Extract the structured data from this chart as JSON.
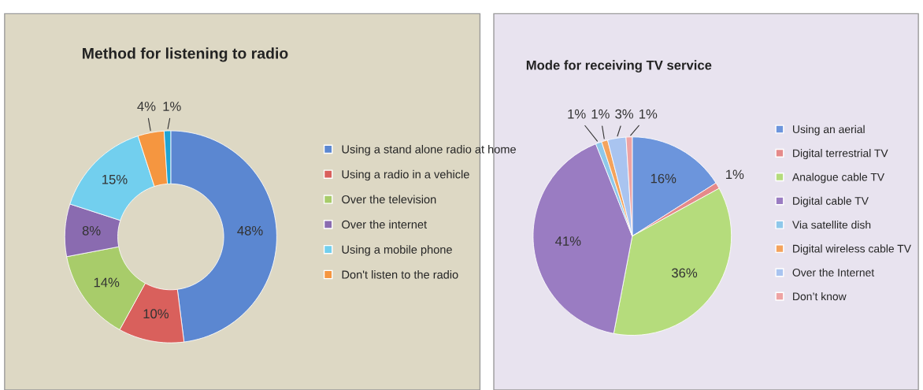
{
  "chart_data": [
    {
      "type": "donut",
      "title": "Method for listening to radio",
      "categories": [
        "Using a stand alone radio at home",
        "Using a radio in a vehicle",
        "Over the television",
        "Over the internet",
        "Using a mobile phone",
        "Don't listen to the radio",
        null
      ],
      "values": [
        48,
        10,
        14,
        8,
        15,
        4,
        1
      ],
      "value_labels": [
        "48%",
        "10%",
        "14%",
        "8%",
        "15%",
        "4%",
        "1%"
      ],
      "colors": [
        "#5b87d1",
        "#d9605c",
        "#a8cc6a",
        "#8a6bb0",
        "#72cfee",
        "#f59640",
        "#1fa4d4"
      ],
      "legend": "right"
    },
    {
      "type": "pie",
      "title": "Mode for receiving TV service",
      "categories": [
        "Using an aerial",
        "Digital terrestrial TV",
        "Analogue cable TV",
        "Digital cable TV",
        "Via satellite dish",
        "Digital wireless cable TV",
        "Over the Internet",
        "Don’t know"
      ],
      "values": [
        16,
        1,
        36,
        41,
        1,
        1,
        3,
        1
      ],
      "value_labels": [
        "16%",
        "1%",
        "36%",
        "41%",
        "1%",
        "1%",
        "3%",
        "1%"
      ],
      "colors": [
        "#6c95dc",
        "#e58a8a",
        "#b5dc7c",
        "#9a7cc2",
        "#8ec8ea",
        "#f4a35c",
        "#a9c4f0",
        "#eea3a3"
      ],
      "legend": "right"
    }
  ]
}
